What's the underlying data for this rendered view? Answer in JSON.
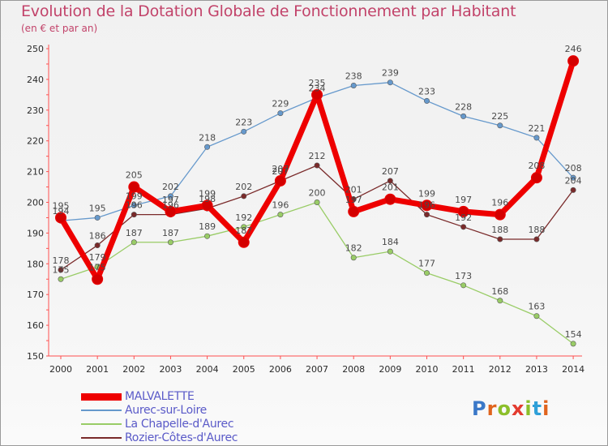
{
  "title": "Evolution de la Dotation Globale de Fonctionnement par Habitant",
  "subtitle": "(en € et par an)",
  "brand": "Proxiti",
  "chart_data": {
    "type": "line",
    "title": "Evolution de la Dotation Globale de Fonctionnement par Habitant",
    "ylabel": "(en € et par an)",
    "xlabel": "",
    "ylim": [
      150,
      250
    ],
    "yticks": [
      "150",
      "160",
      "170",
      "180",
      "190",
      "200",
      "210",
      "220",
      "230",
      "240",
      "250"
    ],
    "categories": [
      "2000",
      "2001",
      "2002",
      "2003",
      "2004",
      "2005",
      "2006",
      "2007",
      "2008",
      "2009",
      "2010",
      "2011",
      "2012",
      "2013",
      "2014"
    ],
    "grid": false,
    "series": [
      {
        "name": "Rozier-Côtes-d'Aurec",
        "color": "#7a2a2a",
        "values": [
          178,
          186,
          196,
          196,
          198,
          202,
          207,
          212,
          201,
          207,
          196,
          192,
          188,
          188,
          204
        ]
      },
      {
        "name": "La Chapelle-d'Aurec",
        "color": "#99cc66",
        "values": [
          175,
          179,
          187,
          187,
          189,
          192,
          196,
          200,
          182,
          184,
          177,
          173,
          168,
          163,
          154
        ]
      },
      {
        "name": "Aurec-sur-Loire",
        "color": "#6699cc",
        "values": [
          194,
          195,
          199,
          202,
          218,
          223,
          229,
          234,
          238,
          239,
          233,
          228,
          225,
          221,
          208
        ]
      },
      {
        "name": "MALVALETTE",
        "color": "#ee0000",
        "values": [
          195,
          175,
          205,
          197,
          199,
          187,
          207,
          235,
          197,
          201,
          199,
          197,
          196,
          208,
          246
        ]
      }
    ],
    "legend": [
      "MALVALETTE",
      "Aurec-sur-Loire",
      "La Chapelle-d'Aurec",
      "Rozier-Côtes-d'Aurec"
    ],
    "legend_position": "bottom-left"
  }
}
